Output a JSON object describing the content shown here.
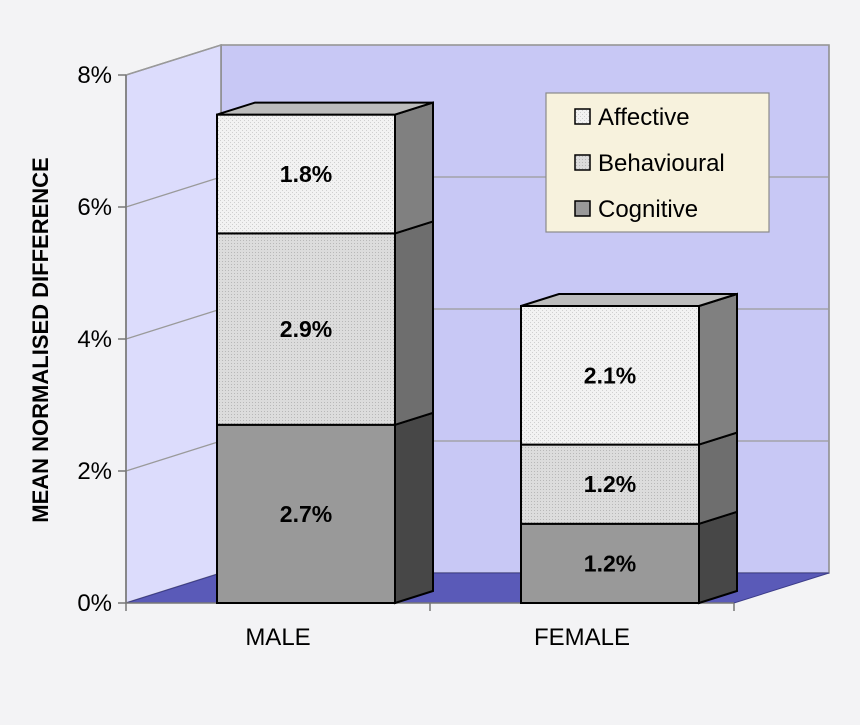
{
  "chart_data": {
    "type": "bar",
    "stacked": true,
    "three_d": true,
    "title": "",
    "xlabel": "",
    "ylabel": "MEAN NORMALISED DIFFERENCE",
    "ylim": [
      0,
      8
    ],
    "yticks": [
      {
        "value": 0,
        "label": "0%"
      },
      {
        "value": 2,
        "label": "2%"
      },
      {
        "value": 4,
        "label": "4%"
      },
      {
        "value": 6,
        "label": "6%"
      },
      {
        "value": 8,
        "label": "8%"
      }
    ],
    "categories": [
      "MALE",
      "FEMALE"
    ],
    "series": [
      {
        "name": "Cognitive",
        "values": [
          2.7,
          1.2
        ],
        "labels": [
          "2.7%",
          "1.2%"
        ],
        "front": "#999999",
        "side": "#474747",
        "top": "#bdbdbd",
        "pattern": false
      },
      {
        "name": "Behavioural",
        "values": [
          2.9,
          1.2
        ],
        "labels": [
          "2.9%",
          "1.2%"
        ],
        "front": "#dadada",
        "side": "#6e6e6e",
        "top": "#ececec",
        "pattern": true
      },
      {
        "name": "Affective",
        "values": [
          1.8,
          2.1
        ],
        "labels": [
          "1.8%",
          "2.1%"
        ],
        "front": "#efefef",
        "side": "#808080",
        "top": "#bcbcbc",
        "pattern": true
      }
    ],
    "legend_position": "top-right",
    "legend_order": [
      "Affective",
      "Behavioural",
      "Cognitive"
    ],
    "colors": {
      "back_wall": "#c8c8f5",
      "side_wall": "#dcdcfc",
      "floor": "#5a5ab8",
      "gridline": "#9a9a9a",
      "legend_bg": "#f7f2dd",
      "page_bg": "#f3f3f5"
    }
  }
}
